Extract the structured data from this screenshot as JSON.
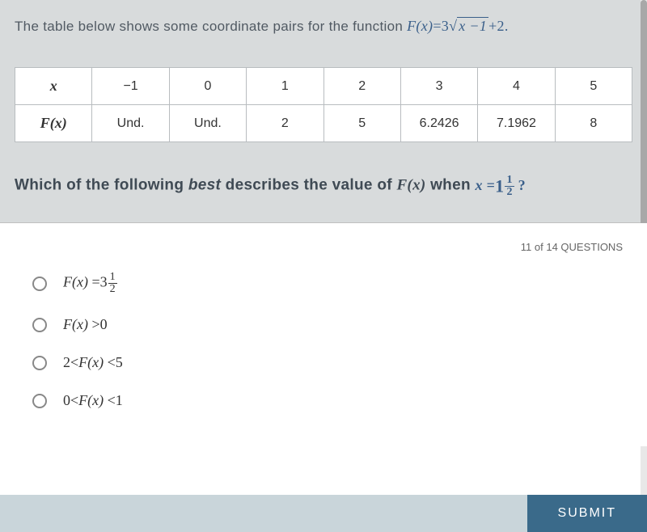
{
  "question": {
    "intro_prefix": "The table below shows some coordinate pairs for the function ",
    "formula_fx": "F",
    "formula_x": "x",
    "formula_eq": "=3",
    "formula_radicand": "x −1",
    "formula_tail": "+2.",
    "table": {
      "row_header_x": "x",
      "row_header_fx_f": "F",
      "row_header_fx_x": "x",
      "columns": [
        "−1",
        "0",
        "1",
        "2",
        "3",
        "4",
        "5"
      ],
      "values": [
        "Und.",
        "Und.",
        "2",
        "5",
        "6.2426",
        "7.1962",
        "8"
      ]
    },
    "prompt_prefix": "Which of the following ",
    "prompt_best": "best",
    "prompt_mid": " describes the value of ",
    "prompt_fx_f": "F",
    "prompt_fx_x": "x",
    "prompt_when": " when ",
    "prompt_x": "x",
    "prompt_eq": "=",
    "prompt_whole": "1",
    "prompt_num": "1",
    "prompt_den": "2",
    "prompt_q": "?"
  },
  "progress": "11 of 14 QUESTIONS",
  "options": {
    "a": {
      "f": "F",
      "x": "x",
      "eq": "=3",
      "num": "1",
      "den": "2"
    },
    "b": {
      "f": "F",
      "x": "x",
      "tail": ">0"
    },
    "c": {
      "lead": "2<",
      "f": "F",
      "x": "x",
      "tail": "<5"
    },
    "d": {
      "lead": "0<",
      "f": "F",
      "x": "x",
      "tail": "<1"
    }
  },
  "submit": "SUBMIT"
}
